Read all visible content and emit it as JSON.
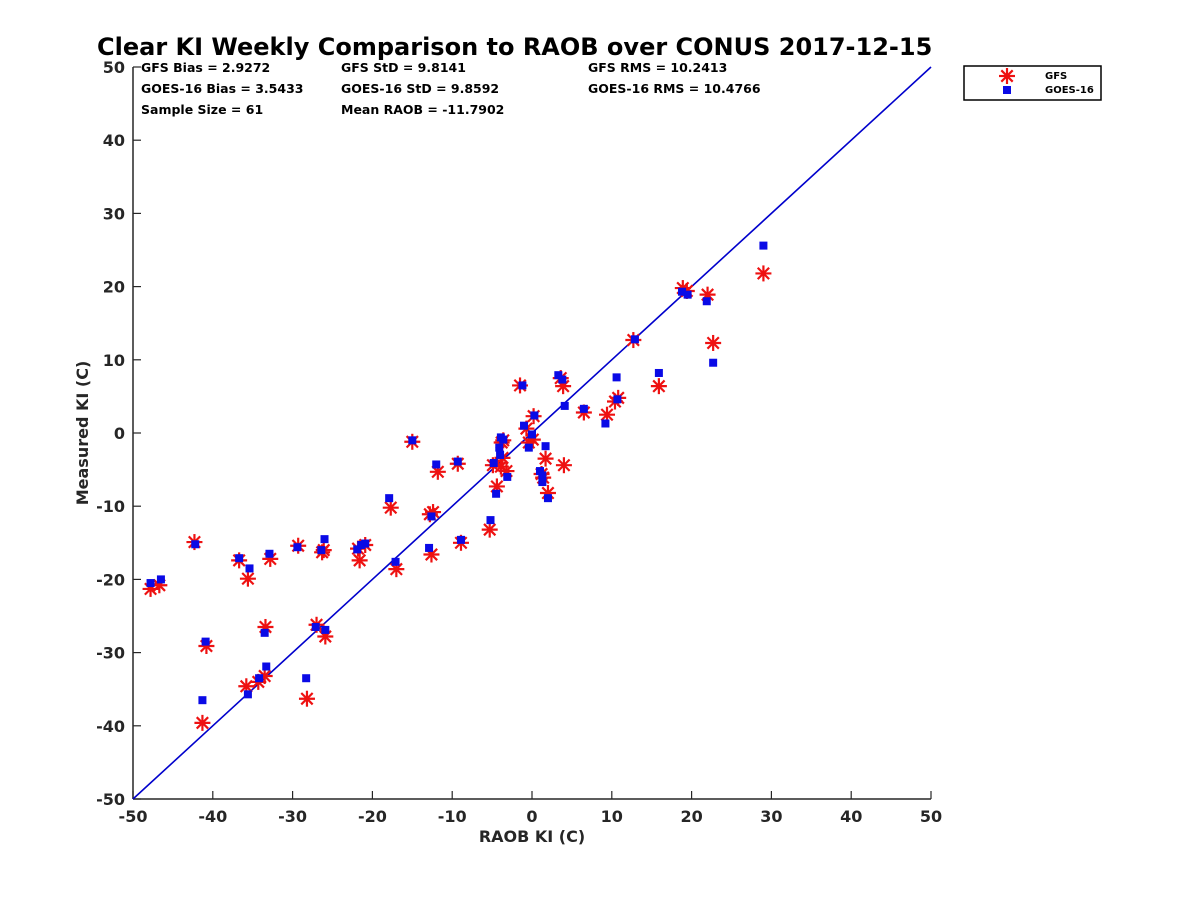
{
  "chart_data": {
    "type": "scatter",
    "title": "Clear KI Weekly Comparison to RAOB over CONUS 2017-12-15",
    "xlabel": "RAOB KI (C)",
    "ylabel": "Measured KI (C)",
    "xlim": [
      -50,
      50
    ],
    "ylim": [
      -50,
      50
    ],
    "xticks": [
      -50,
      -40,
      -30,
      -20,
      -10,
      0,
      10,
      20,
      30,
      40,
      50
    ],
    "yticks": [
      -50,
      -40,
      -30,
      -20,
      -10,
      0,
      10,
      20,
      30,
      40,
      50
    ],
    "xtick_labels": [
      "-50",
      "-40",
      "-30",
      "-20",
      "-10",
      "0",
      "10",
      "20",
      "30",
      "40",
      "50"
    ],
    "ytick_labels": [
      "-50",
      "-40",
      "-30",
      "-20",
      "-10",
      "0",
      "10",
      "20",
      "30",
      "40",
      "50"
    ],
    "grid": false,
    "legend_position": "top-right outside",
    "reference_line": {
      "from": [
        -50,
        -50
      ],
      "to": [
        50,
        50
      ],
      "color": "#0000cc"
    },
    "stats": [
      "GFS Bias = 2.9272",
      "GFS StD = 9.8141",
      "GFS RMS = 10.2413",
      "GOES-16 Bias = 3.5433",
      "GOES-16 StD = 9.8592",
      "GOES-16 RMS = 10.4766",
      "Sample Size = 61",
      "Mean RAOB = -11.7902"
    ],
    "series": [
      {
        "name": "GFS",
        "marker": "asterisk",
        "color": "#ee1111",
        "x": [
          -47.8,
          -46.7,
          -42.3,
          -40.8,
          -41.3,
          -36.7,
          -35.6,
          -35.8,
          -33.4,
          -34.3,
          -33.5,
          -32.8,
          -29.3,
          -28.2,
          -27.0,
          -26.3,
          -26.1,
          -25.9,
          -21.8,
          -21.6,
          -20.9,
          -17.7,
          -17.0,
          -15.0,
          -12.6,
          -12.8,
          -11.8,
          -9.3,
          -8.9,
          -5.3,
          -4.9,
          -4.4,
          -3.9,
          -3.8,
          -3.6,
          -3.2,
          -1.5,
          -0.7,
          -0.4,
          0.2,
          1.2,
          1.7,
          2.0,
          3.6,
          3.9,
          4.0,
          6.5,
          9.4,
          10.4,
          10.8,
          12.7,
          15.9,
          18.9,
          19.4,
          22.0,
          22.7,
          29.0,
          -3.7,
          0.1,
          1.4,
          -12.4
        ],
        "y": [
          -21.3,
          -20.8,
          -14.9,
          -29.1,
          -39.6,
          -17.4,
          -19.9,
          -34.6,
          -26.5,
          -34.0,
          -33.2,
          -17.2,
          -15.4,
          -36.3,
          -26.2,
          -16.3,
          -16.0,
          -27.8,
          -15.8,
          -17.4,
          -15.3,
          -10.2,
          -18.6,
          -1.2,
          -16.6,
          -11.1,
          -5.3,
          -4.2,
          -15.0,
          -13.2,
          -4.4,
          -7.3,
          -4.6,
          -1.3,
          -1.0,
          -5.2,
          6.5,
          0.6,
          -1.3,
          2.3,
          -5.6,
          -3.5,
          -8.2,
          7.5,
          6.4,
          -4.4,
          2.8,
          2.5,
          4.3,
          4.8,
          12.7,
          6.4,
          19.8,
          19.4,
          18.9,
          12.3,
          21.8,
          -3.4,
          -0.9,
          -6.1,
          -10.8
        ]
      },
      {
        "name": "GOES-16",
        "marker": "square",
        "color": "#0a0ae6",
        "x": [
          -47.8,
          -46.5,
          -42.2,
          -41.3,
          -40.9,
          -36.7,
          -35.4,
          -35.6,
          -33.5,
          -33.3,
          -34.2,
          -32.9,
          -29.4,
          -28.3,
          -27.1,
          -26.4,
          -26.0,
          -25.9,
          -21.9,
          -21.4,
          -20.9,
          -17.9,
          -17.1,
          -15.0,
          -12.9,
          -12.6,
          -12.0,
          -9.3,
          -8.9,
          -5.2,
          -4.8,
          -4.5,
          -4.1,
          -3.9,
          -3.6,
          -3.1,
          -1.2,
          -1.0,
          -0.4,
          0.0,
          0.3,
          1.0,
          1.3,
          1.7,
          2.0,
          3.3,
          3.8,
          4.1,
          6.5,
          9.2,
          10.6,
          10.7,
          12.9,
          15.9,
          18.8,
          19.5,
          21.9,
          22.7,
          29.0,
          -4.0,
          1.3
        ],
        "y": [
          -20.5,
          -20.0,
          -15.2,
          -36.5,
          -28.5,
          -17.1,
          -18.5,
          -35.7,
          -27.3,
          -31.9,
          -33.5,
          -16.5,
          -15.6,
          -33.5,
          -26.5,
          -16.0,
          -14.5,
          -26.9,
          -15.9,
          -15.3,
          -15.1,
          -8.9,
          -17.6,
          -1.0,
          -15.7,
          -11.4,
          -4.3,
          -3.9,
          -14.6,
          -11.9,
          -4.1,
          -8.3,
          -2.0,
          -0.6,
          -0.9,
          -6.0,
          6.5,
          1.0,
          -2.0,
          -0.2,
          2.4,
          -5.2,
          -6.7,
          -1.8,
          -8.9,
          7.9,
          7.3,
          3.7,
          3.3,
          1.3,
          7.6,
          4.6,
          12.8,
          8.2,
          19.3,
          18.9,
          18.0,
          9.6,
          25.6,
          -3.0,
          -5.8
        ]
      }
    ]
  }
}
